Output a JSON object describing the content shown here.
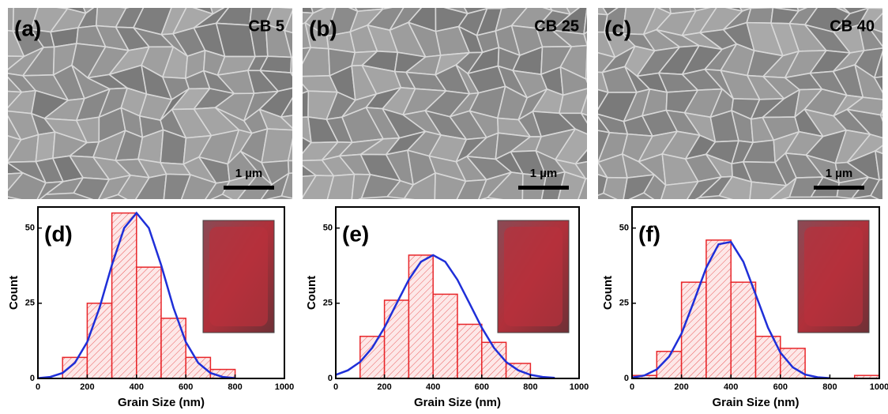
{
  "images": [
    {
      "label": "(a)",
      "sample": "CB 5",
      "scale_bar": "1 µm"
    },
    {
      "label": "(b)",
      "sample": "CB 25",
      "scale_bar": "1 µm"
    },
    {
      "label": "(c)",
      "sample": "CB 40",
      "scale_bar": "1 µm"
    }
  ],
  "chart_data": [
    {
      "type": "histogram",
      "panel_label": "(d)",
      "x_label": "Grain Size (nm)",
      "y_label": "Count",
      "bins": [
        100,
        200,
        300,
        400,
        500,
        600,
        700,
        800
      ],
      "values": [
        7,
        25,
        55,
        37,
        20,
        7,
        3
      ],
      "color": "#e8262a",
      "fit": {
        "x": [
          0,
          50,
          100,
          150,
          200,
          250,
          300,
          350,
          400,
          450,
          500,
          550,
          600,
          650,
          700,
          750,
          800
        ],
        "values": [
          0.1,
          0.5,
          1.8,
          5.2,
          12.1,
          23.5,
          37.7,
          50.0,
          55,
          50.0,
          37.7,
          23.5,
          12.1,
          5.2,
          1.8,
          0.5,
          0.1
        ],
        "color": "#1f2fd8"
      },
      "xlim": [
        0,
        1000
      ],
      "xticks": [
        0,
        200,
        400,
        600,
        800,
        1000
      ],
      "ylim": [
        0,
        57
      ],
      "yticks": [
        0,
        25,
        50
      ]
    },
    {
      "type": "histogram",
      "panel_label": "(e)",
      "x_label": "Grain Size (nm)",
      "y_label": "Count",
      "bins": [
        100,
        200,
        300,
        400,
        500,
        600,
        700,
        800
      ],
      "values": [
        14,
        26,
        41,
        28,
        18,
        12,
        5
      ],
      "color": "#e8262a",
      "fit": {
        "x": [
          0,
          50,
          100,
          150,
          200,
          250,
          300,
          350,
          400,
          450,
          500,
          550,
          600,
          650,
          700,
          750,
          800,
          850,
          900
        ],
        "values": [
          1.2,
          2.7,
          5.5,
          10.2,
          16.9,
          24.9,
          32.8,
          38.8,
          41,
          38.8,
          32.8,
          24.9,
          16.9,
          10.2,
          5.5,
          2.7,
          1.2,
          0.5,
          0.2
        ],
        "color": "#1f2fd8"
      },
      "xlim": [
        0,
        1000
      ],
      "xticks": [
        0,
        200,
        400,
        600,
        800,
        1000
      ],
      "ylim": [
        0,
        57
      ],
      "yticks": [
        0,
        25,
        50
      ]
    },
    {
      "type": "histogram",
      "panel_label": "(f)",
      "x_label": "Grain Size (nm)",
      "y_label": "Count",
      "bins": [
        0,
        100,
        200,
        300,
        400,
        500,
        600,
        700,
        800,
        900,
        1000
      ],
      "values": [
        1,
        9,
        32,
        46,
        32,
        14,
        10,
        0,
        0,
        1
      ],
      "color": "#e8262a",
      "fit": {
        "x": [
          0,
          50,
          100,
          150,
          200,
          250,
          300,
          350,
          400,
          450,
          500,
          550,
          600,
          650,
          700,
          750,
          800
        ],
        "values": [
          0.3,
          1.0,
          3.0,
          7.3,
          14.9,
          25.6,
          36.8,
          44.6,
          45.4,
          38.8,
          27.9,
          16.9,
          8.6,
          3.7,
          1.3,
          0.4,
          0.1
        ],
        "color": "#1f2fd8"
      },
      "xlim": [
        0,
        1000
      ],
      "xticks": [
        0,
        200,
        400,
        600,
        800,
        1000
      ],
      "ylim": [
        0,
        57
      ],
      "yticks": [
        0,
        25,
        50
      ]
    }
  ]
}
